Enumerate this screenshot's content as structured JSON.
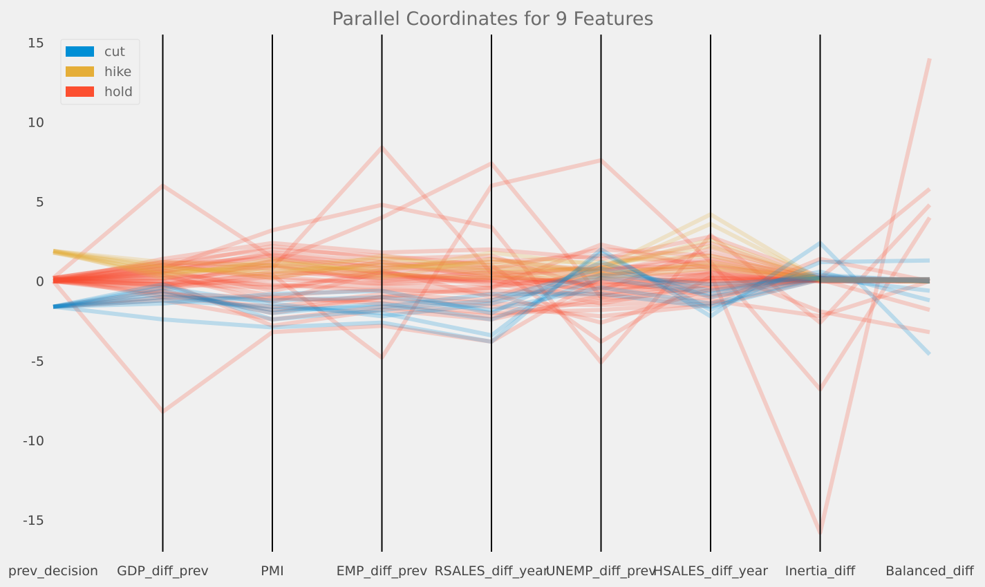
{
  "chart_data": {
    "type": "parallel_coordinates",
    "title": "Parallel Coordinates for 9 Features",
    "features": [
      "prev_decision",
      "GDP_diff_prev",
      "PMI",
      "EMP_diff_prev",
      "RSALES_diff_year",
      "UNEMP_diff_prev",
      "HSALES_diff_year",
      "Inertia_diff",
      "Balanced_diff"
    ],
    "ylim": [
      -17,
      15.5
    ],
    "yticks": [
      15,
      10,
      5,
      0,
      -5,
      -10,
      -15
    ],
    "ytick_labels": [
      "15",
      "10",
      "5",
      "0",
      "-5",
      "-10",
      "-15"
    ],
    "grid": false,
    "legend_position": "top-left",
    "classes": [
      {
        "name": "cut",
        "color": "#008fd5"
      },
      {
        "name": "hike",
        "color": "#e5ae38"
      },
      {
        "name": "hold",
        "color": "#fc4f30"
      }
    ],
    "mean_line_color": "#8b8b8b",
    "lines": [
      {
        "class": "hold",
        "values": [
          0.2,
          6.0,
          1.5,
          0.5,
          0.0,
          -0.5,
          0.2,
          0.1,
          0.0
        ]
      },
      {
        "class": "hold",
        "values": [
          0.0,
          -8.2,
          -3.2,
          -2.8,
          -3.8,
          0.2,
          0.0,
          0.1,
          0.1
        ]
      },
      {
        "class": "hold",
        "values": [
          0.1,
          1.0,
          0.8,
          8.4,
          0.5,
          -0.8,
          0.5,
          -15.8,
          14.0
        ]
      },
      {
        "class": "hold",
        "values": [
          0.0,
          0.5,
          1.2,
          4.0,
          7.4,
          -1.0,
          0.0,
          0.2,
          5.8
        ]
      },
      {
        "class": "hold",
        "values": [
          0.1,
          -0.2,
          0.4,
          -4.8,
          6.0,
          7.6,
          1.2,
          -6.8,
          4.0
        ]
      },
      {
        "class": "hold",
        "values": [
          0.0,
          0.8,
          3.2,
          4.8,
          3.4,
          -5.1,
          2.9,
          -2.6,
          4.8
        ]
      },
      {
        "class": "hold",
        "values": [
          -1.6,
          -0.6,
          -2.0,
          -1.0,
          -0.4,
          2.3,
          0.8,
          -1.9,
          -3.2
        ]
      },
      {
        "class": "hold",
        "values": [
          0.2,
          1.2,
          2.0,
          1.6,
          1.0,
          -3.8,
          0.3,
          0.1,
          -1.8
        ]
      },
      {
        "class": "hold",
        "values": [
          0.0,
          -0.4,
          0.6,
          0.2,
          0.4,
          -0.3,
          0.5,
          0.0,
          0.0
        ]
      },
      {
        "class": "hold",
        "values": [
          0.1,
          0.3,
          -0.9,
          -0.5,
          -0.8,
          -2.6,
          -0.5,
          0.1,
          0.0
        ]
      },
      {
        "class": "hold",
        "values": [
          0.0,
          1.0,
          0.2,
          1.2,
          0.2,
          1.0,
          2.4,
          0.1,
          0.0
        ]
      },
      {
        "class": "hold",
        "values": [
          0.2,
          -1.0,
          -1.6,
          -0.8,
          -1.2,
          0.0,
          -0.9,
          0.2,
          0.0
        ]
      },
      {
        "class": "hold",
        "values": [
          0.0,
          0.6,
          1.6,
          0.8,
          1.4,
          0.6,
          1.8,
          0.1,
          0.0
        ]
      },
      {
        "class": "hold",
        "values": [
          -1.6,
          -1.2,
          -2.4,
          -1.6,
          -2.2,
          -1.2,
          -1.0,
          0.1,
          0.0
        ]
      },
      {
        "class": "hold",
        "values": [
          0.0,
          1.4,
          2.4,
          1.8,
          2.0,
          1.4,
          2.8,
          0.3,
          0.0
        ]
      },
      {
        "class": "hold",
        "values": [
          0.1,
          -0.2,
          -0.4,
          0.4,
          -0.1,
          -1.4,
          -0.2,
          0.1,
          0.0
        ]
      },
      {
        "class": "hold",
        "values": [
          0.0,
          0.2,
          1.0,
          0.0,
          0.6,
          0.4,
          1.0,
          0.1,
          0.0
        ]
      },
      {
        "class": "hold",
        "values": [
          0.0,
          -0.8,
          -1.0,
          -1.4,
          -2.0,
          -1.8,
          -1.4,
          1.4,
          0.0
        ]
      },
      {
        "class": "hold",
        "values": [
          0.1,
          0.6,
          1.8,
          1.2,
          0.8,
          2.0,
          1.6,
          0.1,
          0.0
        ]
      },
      {
        "class": "hold",
        "values": [
          0.0,
          0.0,
          -0.2,
          -0.6,
          -0.6,
          -0.8,
          0.2,
          0.0,
          0.0
        ]
      },
      {
        "class": "hold",
        "values": [
          0.2,
          1.1,
          1.4,
          0.9,
          0.5,
          0.8,
          0.7,
          0.1,
          0.0
        ]
      },
      {
        "class": "hold",
        "values": [
          0.0,
          -0.5,
          0.3,
          -0.2,
          0.1,
          -1.1,
          -0.6,
          0.1,
          0.0
        ]
      },
      {
        "class": "hold",
        "values": [
          0.1,
          0.4,
          -1.3,
          0.6,
          -0.3,
          0.3,
          1.3,
          0.0,
          0.0
        ]
      },
      {
        "class": "hold",
        "values": [
          0.0,
          0.9,
          2.2,
          1.4,
          1.6,
          -0.6,
          2.1,
          0.2,
          0.0
        ]
      },
      {
        "class": "hold",
        "values": [
          -1.6,
          -1.0,
          -1.1,
          -1.2,
          -1.6,
          -2.2,
          -1.5,
          0.1,
          0.0
        ]
      },
      {
        "class": "hold",
        "values": [
          0.2,
          0.0,
          0.9,
          0.1,
          0.3,
          -0.2,
          0.0,
          0.1,
          0.0
        ]
      },
      {
        "class": "hold",
        "values": [
          0.0,
          0.7,
          -0.6,
          0.7,
          -1.0,
          0.9,
          0.9,
          0.2,
          0.0
        ]
      },
      {
        "class": "hold",
        "values": [
          0.1,
          -0.3,
          1.3,
          0.3,
          0.7,
          -0.4,
          -0.3,
          0.1,
          0.0
        ]
      },
      {
        "class": "hold",
        "values": [
          0.0,
          0.5,
          -0.3,
          -0.3,
          -0.4,
          0.5,
          0.4,
          0.0,
          0.0
        ]
      },
      {
        "class": "hold",
        "values": [
          0.2,
          0.8,
          1.7,
          1.0,
          1.2,
          1.6,
          1.1,
          0.1,
          0.0
        ]
      },
      {
        "class": "hold",
        "values": [
          0.0,
          -0.7,
          -1.8,
          -1.0,
          -1.4,
          -1.5,
          -1.2,
          -2.2,
          0.0
        ]
      },
      {
        "class": "hold",
        "values": [
          0.1,
          0.2,
          0.5,
          0.5,
          0.0,
          0.1,
          0.6,
          0.1,
          0.0
        ]
      },
      {
        "class": "hold",
        "values": [
          0.0,
          0.0,
          -2.8,
          -1.8,
          -2.4,
          -0.9,
          -0.4,
          0.1,
          0.0
        ]
      },
      {
        "class": "hold",
        "values": [
          0.2,
          1.2,
          1.0,
          0.6,
          0.9,
          0.7,
          1.4,
          0.2,
          0.0
        ]
      },
      {
        "class": "hold",
        "values": [
          0.0,
          -0.2,
          0.1,
          -0.1,
          0.2,
          -0.1,
          0.2,
          0.1,
          0.0
        ]
      },
      {
        "class": "hike",
        "values": [
          1.9,
          1.2,
          1.0,
          1.4,
          1.0,
          0.8,
          4.2,
          0.1,
          0.0
        ]
      },
      {
        "class": "hike",
        "values": [
          1.9,
          0.8,
          0.6,
          1.0,
          0.8,
          0.6,
          3.6,
          0.1,
          0.0
        ]
      },
      {
        "class": "hike",
        "values": [
          1.8,
          0.4,
          1.2,
          0.6,
          1.8,
          1.0,
          2.2,
          0.1,
          0.0
        ]
      },
      {
        "class": "hike",
        "values": [
          1.9,
          1.0,
          0.2,
          1.2,
          0.4,
          0.4,
          1.2,
          0.1,
          0.0
        ]
      },
      {
        "class": "hike",
        "values": [
          1.8,
          0.6,
          0.8,
          0.8,
          1.2,
          1.2,
          1.6,
          0.1,
          0.0
        ]
      },
      {
        "class": "hike",
        "values": [
          1.9,
          0.2,
          1.4,
          0.4,
          0.2,
          0.2,
          0.8,
          0.1,
          0.0
        ]
      },
      {
        "class": "hike",
        "values": [
          1.8,
          0.9,
          0.4,
          1.6,
          0.6,
          0.8,
          2.6,
          0.1,
          0.0
        ]
      },
      {
        "class": "hike",
        "values": [
          1.9,
          0.5,
          1.0,
          0.2,
          1.4,
          0.5,
          1.0,
          0.1,
          0.0
        ]
      },
      {
        "class": "cut",
        "values": [
          -1.6,
          -2.4,
          -2.9,
          -2.6,
          -3.8,
          2.0,
          -2.2,
          2.4,
          -4.6
        ]
      },
      {
        "class": "cut",
        "values": [
          -1.6,
          -1.2,
          -1.6,
          -2.0,
          -3.4,
          1.8,
          -1.8,
          1.2,
          1.3
        ]
      },
      {
        "class": "cut",
        "values": [
          -1.6,
          -0.6,
          -2.0,
          -1.4,
          -2.4,
          0.2,
          -0.8,
          0.6,
          -1.2
        ]
      },
      {
        "class": "cut",
        "values": [
          -1.6,
          -1.0,
          -1.2,
          -1.0,
          -1.8,
          -0.4,
          -1.4,
          0.2,
          -0.6
        ]
      },
      {
        "class": "cut",
        "values": [
          -1.6,
          -0.2,
          -2.4,
          -1.8,
          -1.2,
          0.8,
          -0.6,
          0.4,
          0.0
        ]
      },
      {
        "class": "cut",
        "values": [
          -1.6,
          -1.4,
          -0.8,
          -0.6,
          -2.0,
          1.2,
          -1.0,
          0.3,
          0.0
        ]
      },
      {
        "class": "cut",
        "values": [
          -1.6,
          -0.8,
          -1.8,
          -1.6,
          -0.8,
          -0.8,
          -1.6,
          0.1,
          0.0
        ]
      },
      {
        "class": "cut",
        "values": [
          -1.6,
          -0.4,
          -1.4,
          -2.2,
          -1.4,
          0.4,
          -0.2,
          0.2,
          0.0
        ]
      }
    ]
  }
}
